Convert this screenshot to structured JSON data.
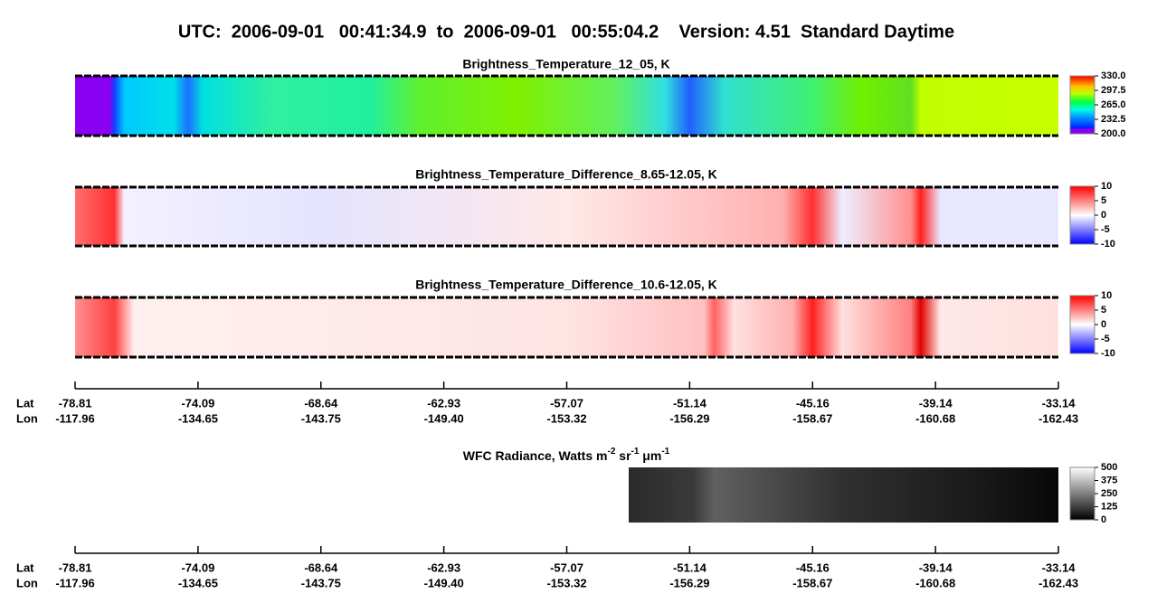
{
  "title": "UTC:  2006-09-01   00:41:34.9  to  2006-09-01   00:55:04.2    Version: 4.51  Standard Daytime",
  "panels": [
    {
      "title": "Brightness_Temperature_12_05, K",
      "colorbar": [
        "330.0",
        "297.5",
        "265.0",
        "232.5",
        "200.0"
      ]
    },
    {
      "title": "Brightness_Temperature_Difference_8.65-12.05, K",
      "colorbar": [
        "10",
        "5",
        "0",
        "-5",
        "-10"
      ]
    },
    {
      "title": "Brightness_Temperature_Difference_10.6-12.05, K",
      "colorbar": [
        "10",
        "5",
        "0",
        "-5",
        "-10"
      ]
    },
    {
      "title_segments": [
        {
          "text": "WFC Radiance, Watts m"
        },
        {
          "sup": "-2"
        },
        {
          "text": " sr"
        },
        {
          "sup": "-1"
        },
        {
          "text": " μm"
        },
        {
          "sup": "-1"
        }
      ],
      "colorbar": [
        "500",
        "375",
        "250",
        "125",
        "0"
      ]
    }
  ],
  "axes": [
    {
      "row_labels": [
        "Lat",
        "Lon"
      ],
      "lat": [
        "-78.81",
        "-74.09",
        "-68.64",
        "-62.93",
        "-57.07",
        "-51.14",
        "-45.16",
        "-39.14",
        "-33.14"
      ],
      "lon": [
        "-117.96",
        "-134.65",
        "-143.75",
        "-149.40",
        "-153.32",
        "-156.29",
        "-158.67",
        "-160.68",
        "-162.43"
      ]
    },
    {
      "row_labels": [
        "Lat",
        "Lon"
      ],
      "lat": [
        "-78.81",
        "-74.09",
        "-68.64",
        "-62.93",
        "-57.07",
        "-51.14",
        "-45.16",
        "-39.14",
        "-33.14"
      ],
      "lon": [
        "-117.96",
        "-134.65",
        "-143.75",
        "-149.40",
        "-153.32",
        "-156.29",
        "-158.67",
        "-160.68",
        "-162.43"
      ]
    }
  ]
}
